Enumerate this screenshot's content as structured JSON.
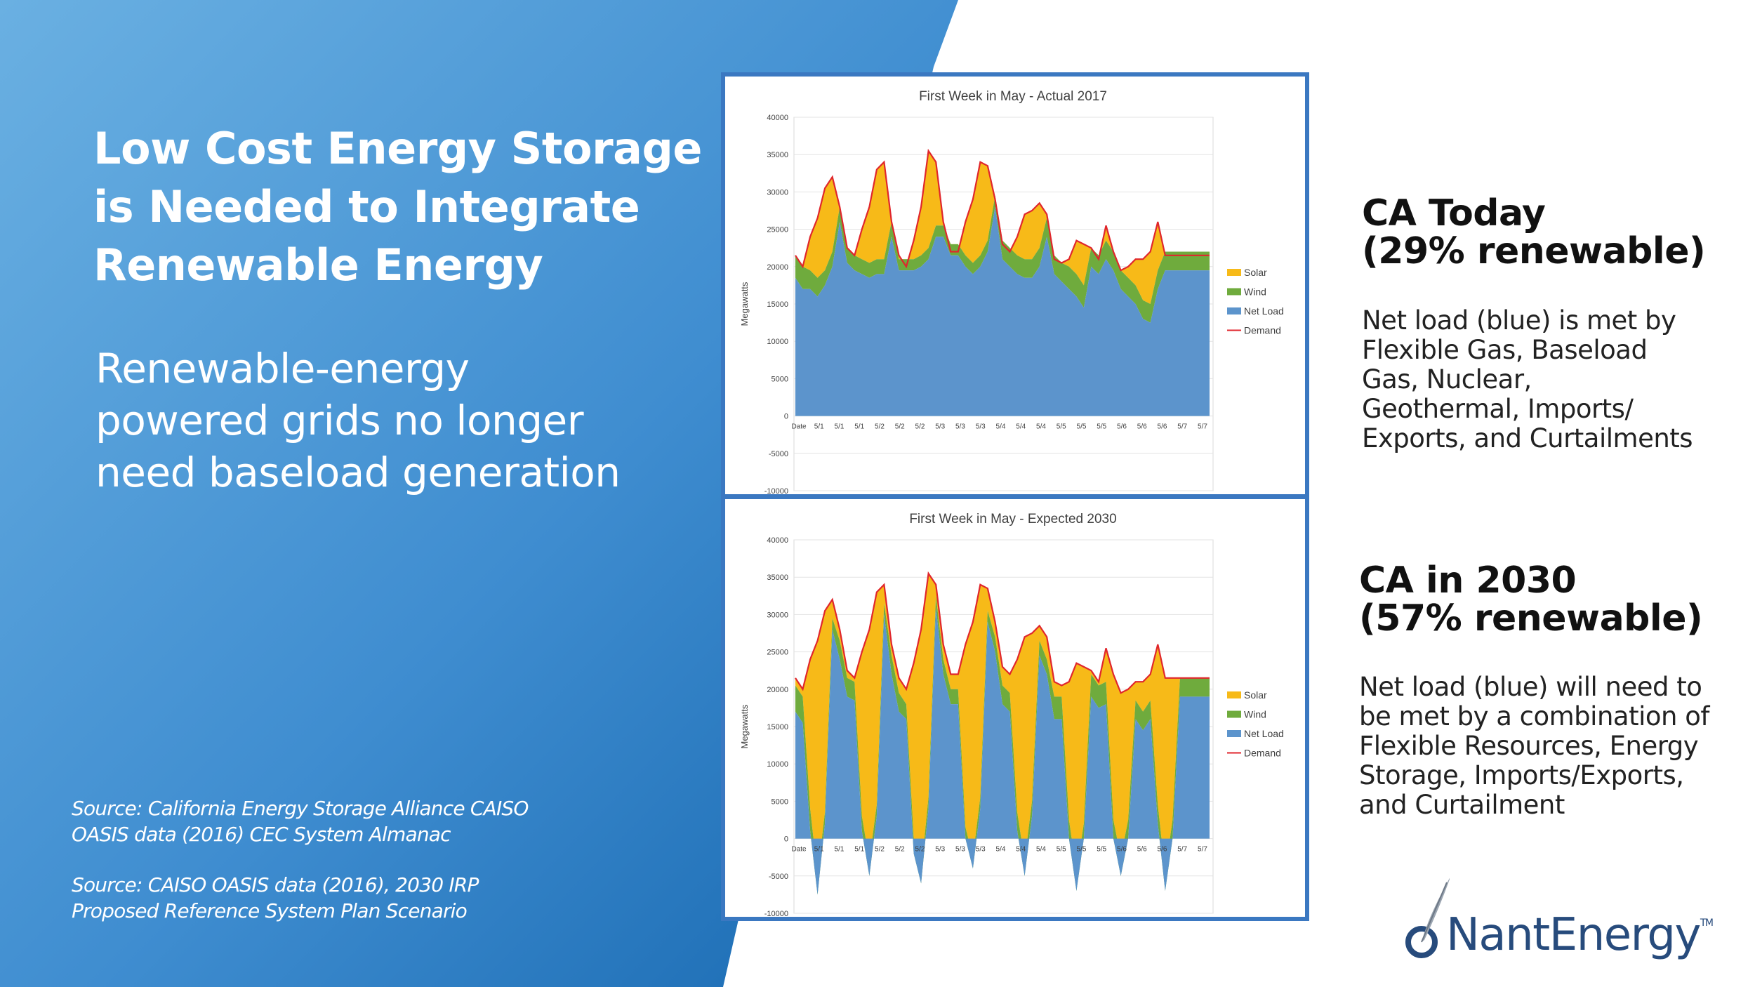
{
  "headline": [
    "Low Cost Energy Storage",
    "is Needed to Integrate",
    "Renewable Energy"
  ],
  "subtitle": [
    "Renewable-energy",
    "powered grids no longer",
    "need baseload generation"
  ],
  "sources": [
    [
      "Source: California Energy Storage Alliance CAISO",
      "OASIS data (2016) CEC System Almanac"
    ],
    [
      "Source: CAISO OASIS data (2016), 2030 IRP",
      "Proposed Reference System Plan Scenario"
    ]
  ],
  "today": {
    "title": [
      "CA Today",
      "(29% renewable)"
    ],
    "desc": [
      "Net load (blue) is met by",
      "Flexible Gas, Baseload",
      "Gas, Nuclear,",
      "Geothermal, Imports/",
      "Exports, and Curtailments"
    ]
  },
  "future": {
    "title": [
      "CA in 2030",
      "(57% renewable)"
    ],
    "desc": [
      "Net load (blue) will need to",
      "be met by a combination of",
      "Flexible Resources, Energy",
      "Storage, Imports/Exports,",
      "and Curtailment"
    ]
  },
  "logo": {
    "name": "NantEnergy",
    "tm": "TM",
    "icon": "feather-o-icon"
  },
  "colors": {
    "solar": "#f7ba18",
    "wind": "#6fab3d",
    "net_load": "#5c94cc",
    "demand": "#e0262c",
    "panel_border": "#3b78c1",
    "bg_blue_light": "#68ade0",
    "bg_blue_dark": "#1f6fb5"
  },
  "chart_data": [
    {
      "type": "area",
      "title": "First Week in May - Actual 2017",
      "ylabel": "Megawatts",
      "ylim": [
        -10000,
        40000
      ],
      "yticks": [
        40000,
        35000,
        30000,
        25000,
        20000,
        15000,
        10000,
        5000,
        0,
        -5000,
        -10000
      ],
      "xtick_labels": [
        "Date",
        "5/1",
        "5/1",
        "5/1",
        "5/2",
        "5/2",
        "5/2",
        "5/3",
        "5/3",
        "5/3",
        "5/4",
        "5/4",
        "5/4",
        "5/5",
        "5/5",
        "5/5",
        "5/6",
        "5/6",
        "5/6",
        "5/7",
        "5/7"
      ],
      "legend": [
        "Solar",
        "Wind",
        "Net Load",
        "Demand"
      ],
      "legend_position": "right",
      "x_hours": [
        0,
        3,
        6,
        9,
        12,
        15,
        18,
        21,
        24,
        27,
        30,
        33,
        36,
        39,
        42,
        45,
        48,
        51,
        54,
        57,
        60,
        63,
        66,
        69,
        72,
        75,
        78,
        81,
        84,
        87,
        90,
        93,
        96,
        99,
        102,
        105,
        108,
        111,
        114,
        117,
        120,
        123,
        126,
        129,
        132,
        135,
        138,
        141,
        144,
        147,
        150,
        153,
        156,
        159,
        162,
        165,
        168
      ],
      "demand": [
        21500,
        20000,
        24000,
        26500,
        30500,
        32000,
        28000,
        22500,
        21500,
        25000,
        28000,
        33000,
        34000,
        26000,
        21500,
        20000,
        23500,
        28000,
        35500,
        34000,
        26000,
        22000,
        22000,
        26000,
        29000,
        34000,
        33500,
        29000,
        23000,
        22000,
        24000,
        27000,
        27500,
        28500,
        27000,
        21000,
        20500,
        21000,
        23500,
        23000,
        22500,
        21000,
        25500,
        22000,
        19500,
        20000,
        21000,
        21000,
        22000,
        26000,
        21500,
        21500,
        21500,
        21500,
        21500,
        21500,
        21500
      ],
      "wind": [
        3000,
        3000,
        2500,
        2500,
        2000,
        2000,
        2000,
        2000,
        2000,
        2000,
        2000,
        2000,
        2000,
        2000,
        1500,
        1500,
        1500,
        1500,
        1500,
        1500,
        1500,
        1500,
        1500,
        1500,
        1500,
        1500,
        1500,
        1500,
        2500,
        2500,
        2500,
        2500,
        2500,
        2500,
        2500,
        2500,
        2500,
        3000,
        3000,
        3000,
        2500,
        2500,
        2500,
        2500,
        2500,
        2500,
        2500,
        2500,
        2500,
        2500,
        2500,
        2500,
        2500,
        2500,
        2500,
        2500,
        2500
      ],
      "net_load": [
        18500,
        17000,
        17000,
        16000,
        17500,
        20000,
        26000,
        20500,
        19500,
        19000,
        18500,
        19000,
        19000,
        24000,
        19500,
        19500,
        19500,
        20000,
        21000,
        24000,
        24000,
        21500,
        21500,
        20000,
        19000,
        20000,
        22000,
        28000,
        21000,
        20000,
        19000,
        18500,
        18500,
        20000,
        24000,
        19000,
        18000,
        17000,
        16000,
        14500,
        20000,
        19000,
        21000,
        19500,
        17000,
        16000,
        15000,
        13000,
        12500,
        17000,
        19500,
        19500,
        19500,
        19500,
        19500,
        19500,
        19500
      ]
    },
    {
      "type": "area",
      "title": "First Week in May - Expected 2030",
      "ylabel": "Megawatts",
      "ylim": [
        -10000,
        40000
      ],
      "yticks": [
        40000,
        35000,
        30000,
        25000,
        20000,
        15000,
        10000,
        5000,
        0,
        -5000,
        -10000
      ],
      "xtick_labels": [
        "Date",
        "5/1",
        "5/1",
        "5/1",
        "5/2",
        "5/2",
        "5/2",
        "5/3",
        "5/3",
        "5/3",
        "5/4",
        "5/4",
        "5/4",
        "5/5",
        "5/5",
        "5/5",
        "5/6",
        "5/6",
        "5/6",
        "5/7",
        "5/7"
      ],
      "legend": [
        "Solar",
        "Wind",
        "Net Load",
        "Demand"
      ],
      "legend_position": "right",
      "x_hours": [
        0,
        3,
        6,
        9,
        12,
        15,
        18,
        21,
        24,
        27,
        30,
        33,
        36,
        39,
        42,
        45,
        48,
        51,
        54,
        57,
        60,
        63,
        66,
        69,
        72,
        75,
        78,
        81,
        84,
        87,
        90,
        93,
        96,
        99,
        102,
        105,
        108,
        111,
        114,
        117,
        120,
        123,
        126,
        129,
        132,
        135,
        138,
        141,
        144,
        147,
        150,
        153,
        156,
        159,
        162,
        165,
        168
      ],
      "demand": [
        21500,
        20000,
        24000,
        26500,
        30500,
        32000,
        28000,
        22500,
        21500,
        25000,
        28000,
        33000,
        34000,
        26000,
        21500,
        20000,
        23500,
        28000,
        35500,
        34000,
        26000,
        22000,
        22000,
        26000,
        29000,
        34000,
        33500,
        29000,
        23000,
        22000,
        24000,
        27000,
        27500,
        28500,
        27000,
        21000,
        20500,
        21000,
        23500,
        23000,
        22500,
        21000,
        25500,
        22000,
        19500,
        20000,
        21000,
        21000,
        22000,
        26000,
        21500,
        21500,
        21500,
        21500,
        21500,
        21500,
        21500
      ],
      "wind": [
        3500,
        3500,
        3000,
        2500,
        1500,
        1500,
        2500,
        2500,
        2500,
        2000,
        2000,
        1500,
        1500,
        2500,
        2500,
        2000,
        2000,
        1500,
        1500,
        1500,
        2000,
        2000,
        2000,
        1500,
        1500,
        1500,
        1500,
        2000,
        2500,
        2500,
        2500,
        2000,
        2000,
        2000,
        2000,
        3000,
        3000,
        2500,
        2500,
        2000,
        3000,
        3000,
        3000,
        2500,
        2500,
        2500,
        2500,
        2500,
        2500,
        2500,
        2500,
        2500,
        2500,
        2500,
        2500,
        2500,
        2500
      ],
      "net_load": [
        17000,
        15500,
        1000,
        -7500,
        2000,
        28000,
        24000,
        19000,
        18500,
        1000,
        -5000,
        3000,
        30000,
        22000,
        17000,
        16000,
        -2000,
        -6000,
        4000,
        31000,
        22000,
        18000,
        18000,
        0,
        -4000,
        4000,
        29000,
        25000,
        18000,
        17000,
        1000,
        -5000,
        3000,
        24500,
        22000,
        16000,
        16000,
        0,
        -7000,
        0,
        19000,
        17500,
        18000,
        0,
        -5000,
        0,
        16000,
        14500,
        16000,
        2000,
        -7000,
        0,
        19000,
        19000,
        19000,
        19000,
        19000
      ]
    }
  ]
}
